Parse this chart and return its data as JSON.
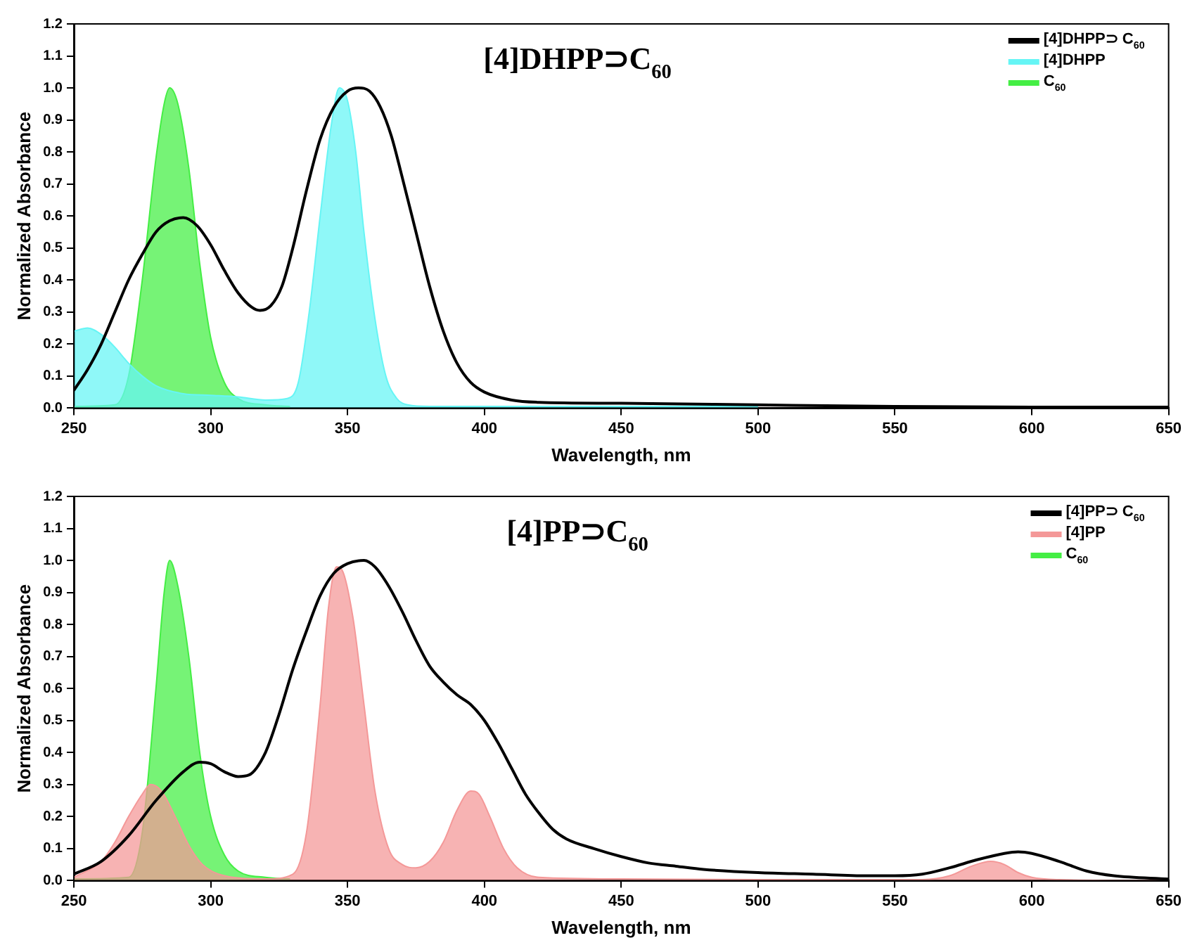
{
  "chart_data": [
    {
      "type": "line",
      "title": "[4]DHPP⊃C$_{60}$",
      "xlabel": "Wavelength, nm",
      "ylabel": "Normalized Absorbance",
      "xlim": [
        250,
        650
      ],
      "xticks": [
        250,
        300,
        350,
        400,
        450,
        500,
        550,
        600,
        650
      ],
      "ylim": [
        0,
        1.2
      ],
      "yticks": [
        {
          "value": 0,
          "label": "0.0"
        },
        {
          "value": 0.1,
          "label": "0.1"
        },
        {
          "value": 0.2,
          "label": "0.2"
        },
        {
          "value": 0.3,
          "label": "0.3"
        },
        {
          "value": 0.4,
          "label": "0.4"
        },
        {
          "value": 0.5,
          "label": "0.5"
        },
        {
          "value": 0.6,
          "label": "0.6"
        },
        {
          "value": 0.7,
          "label": "0.7"
        },
        {
          "value": 0.8,
          "label": "0.8"
        },
        {
          "value": 0.9,
          "label": "0.9"
        },
        {
          "value": 1,
          "label": "1.0"
        },
        {
          "value": 1.1,
          "label": "1.1"
        },
        {
          "value": 1.2,
          "label": "1.2"
        }
      ],
      "grid": false,
      "legend": "top right",
      "marker": "none",
      "line_style": "solid",
      "series": [
        {
          "name": "[4]DHPP⊃ C$_{60}$",
          "type": "line",
          "color": "#000000",
          "x": [
            250,
            255,
            260,
            265,
            270,
            275,
            280,
            285,
            290,
            295,
            300,
            305,
            310,
            315,
            318,
            322,
            326,
            330,
            335,
            340,
            345,
            350,
            354,
            358,
            362,
            366,
            370,
            375,
            380,
            385,
            390,
            395,
            400,
            410,
            420,
            450,
            500,
            550,
            600,
            650
          ],
          "values": [
            0.055,
            0.12,
            0.2,
            0.3,
            0.4,
            0.48,
            0.55,
            0.585,
            0.595,
            0.57,
            0.51,
            0.43,
            0.36,
            0.315,
            0.305,
            0.32,
            0.38,
            0.5,
            0.68,
            0.84,
            0.94,
            0.99,
            1.0,
            0.99,
            0.94,
            0.85,
            0.72,
            0.55,
            0.38,
            0.24,
            0.14,
            0.08,
            0.05,
            0.025,
            0.018,
            0.015,
            0.01,
            0.005,
            0.003,
            0.003
          ]
        },
        {
          "name": "[4]DHPP",
          "type": "area",
          "color": "#66f5f5",
          "x": [
            250,
            255,
            260,
            265,
            270,
            275,
            280,
            290,
            300,
            310,
            320,
            328,
            332,
            336,
            340,
            344,
            347,
            350,
            353,
            356,
            360,
            364,
            368,
            372,
            380,
            500
          ],
          "values": [
            0.24,
            0.25,
            0.23,
            0.19,
            0.14,
            0.1,
            0.07,
            0.045,
            0.04,
            0.035,
            0.025,
            0.03,
            0.08,
            0.3,
            0.6,
            0.88,
            1.0,
            0.96,
            0.8,
            0.55,
            0.28,
            0.1,
            0.03,
            0.01,
            0.005,
            0.005
          ]
        },
        {
          "name": "C$_{60}$",
          "type": "area",
          "color": "#44ee44",
          "x": [
            250,
            265,
            270,
            275,
            280,
            283,
            285,
            288,
            292,
            296,
            300,
            305,
            310,
            320,
            329
          ],
          "values": [
            0.005,
            0.01,
            0.1,
            0.4,
            0.78,
            0.95,
            1.0,
            0.95,
            0.75,
            0.45,
            0.22,
            0.08,
            0.03,
            0.01,
            0.005
          ]
        }
      ]
    },
    {
      "type": "line",
      "title": "[4]PP⊃C$_{60}$",
      "xlabel": "Wavelength, nm",
      "ylabel": "Normalized Absorbance",
      "xlim": [
        250,
        650
      ],
      "xticks": [
        250,
        300,
        350,
        400,
        450,
        500,
        550,
        600,
        650
      ],
      "ylim": [
        0,
        1.2
      ],
      "yticks": [
        {
          "value": 0,
          "label": "0.0"
        },
        {
          "value": 0.1,
          "label": "0.1"
        },
        {
          "value": 0.2,
          "label": "0.2"
        },
        {
          "value": 0.3,
          "label": "0.3"
        },
        {
          "value": 0.4,
          "label": "0.4"
        },
        {
          "value": 0.5,
          "label": "0.5"
        },
        {
          "value": 0.6,
          "label": "0.6"
        },
        {
          "value": 0.7,
          "label": "0.7"
        },
        {
          "value": 0.8,
          "label": "0.8"
        },
        {
          "value": 0.9,
          "label": "0.9"
        },
        {
          "value": 1,
          "label": "1.0"
        },
        {
          "value": 1.1,
          "label": "1.1"
        },
        {
          "value": 1.2,
          "label": "1.2"
        }
      ],
      "grid": false,
      "legend": "top right",
      "marker": "none",
      "line_style": "solid",
      "series": [
        {
          "name": "[4]PP⊃ C$_{60}$",
          "type": "line",
          "color": "#000000",
          "x": [
            250,
            260,
            270,
            280,
            290,
            296,
            300,
            305,
            310,
            314,
            320,
            325,
            330,
            335,
            340,
            345,
            350,
            356,
            360,
            365,
            370,
            375,
            380,
            385,
            390,
            395,
            400,
            405,
            410,
            415,
            420,
            425,
            430,
            440,
            450,
            460,
            470,
            480,
            500,
            520,
            540,
            550,
            560,
            570,
            580,
            590,
            595,
            600,
            610,
            620,
            630,
            650
          ],
          "values": [
            0.02,
            0.06,
            0.14,
            0.25,
            0.34,
            0.37,
            0.365,
            0.34,
            0.325,
            0.33,
            0.4,
            0.52,
            0.66,
            0.78,
            0.89,
            0.96,
            0.99,
            1.0,
            0.98,
            0.92,
            0.84,
            0.75,
            0.67,
            0.62,
            0.58,
            0.55,
            0.5,
            0.43,
            0.35,
            0.27,
            0.21,
            0.16,
            0.13,
            0.1,
            0.075,
            0.055,
            0.045,
            0.035,
            0.025,
            0.02,
            0.015,
            0.015,
            0.02,
            0.04,
            0.065,
            0.085,
            0.09,
            0.085,
            0.06,
            0.03,
            0.015,
            0.005
          ]
        },
        {
          "name": "[4]PP",
          "type": "area",
          "color": "#f49898",
          "x": [
            250,
            260,
            265,
            270,
            275,
            278,
            282,
            287,
            292,
            297,
            305,
            320,
            330,
            335,
            340,
            343,
            346,
            348,
            352,
            356,
            360,
            365,
            370,
            375,
            380,
            385,
            390,
            395,
            398,
            402,
            407,
            412,
            420,
            450,
            500,
            560,
            570,
            578,
            585,
            590,
            595,
            600,
            610,
            650
          ],
          "values": [
            0.01,
            0.06,
            0.12,
            0.2,
            0.27,
            0.3,
            0.28,
            0.2,
            0.11,
            0.05,
            0.015,
            0.005,
            0.02,
            0.15,
            0.55,
            0.85,
            0.98,
            0.97,
            0.82,
            0.55,
            0.28,
            0.1,
            0.05,
            0.04,
            0.06,
            0.12,
            0.22,
            0.28,
            0.27,
            0.2,
            0.1,
            0.04,
            0.01,
            0.005,
            0.003,
            0.003,
            0.015,
            0.045,
            0.06,
            0.05,
            0.025,
            0.01,
            0.003,
            0
          ]
        },
        {
          "name": "C$_{60}$",
          "type": "area",
          "color": "#44ee44",
          "x": [
            250,
            270,
            275,
            280,
            283,
            285,
            288,
            292,
            296,
            300,
            305,
            310,
            320,
            329
          ],
          "values": [
            0.005,
            0.01,
            0.15,
            0.6,
            0.9,
            1.0,
            0.92,
            0.7,
            0.4,
            0.2,
            0.08,
            0.03,
            0.01,
            0.005
          ]
        }
      ]
    }
  ]
}
